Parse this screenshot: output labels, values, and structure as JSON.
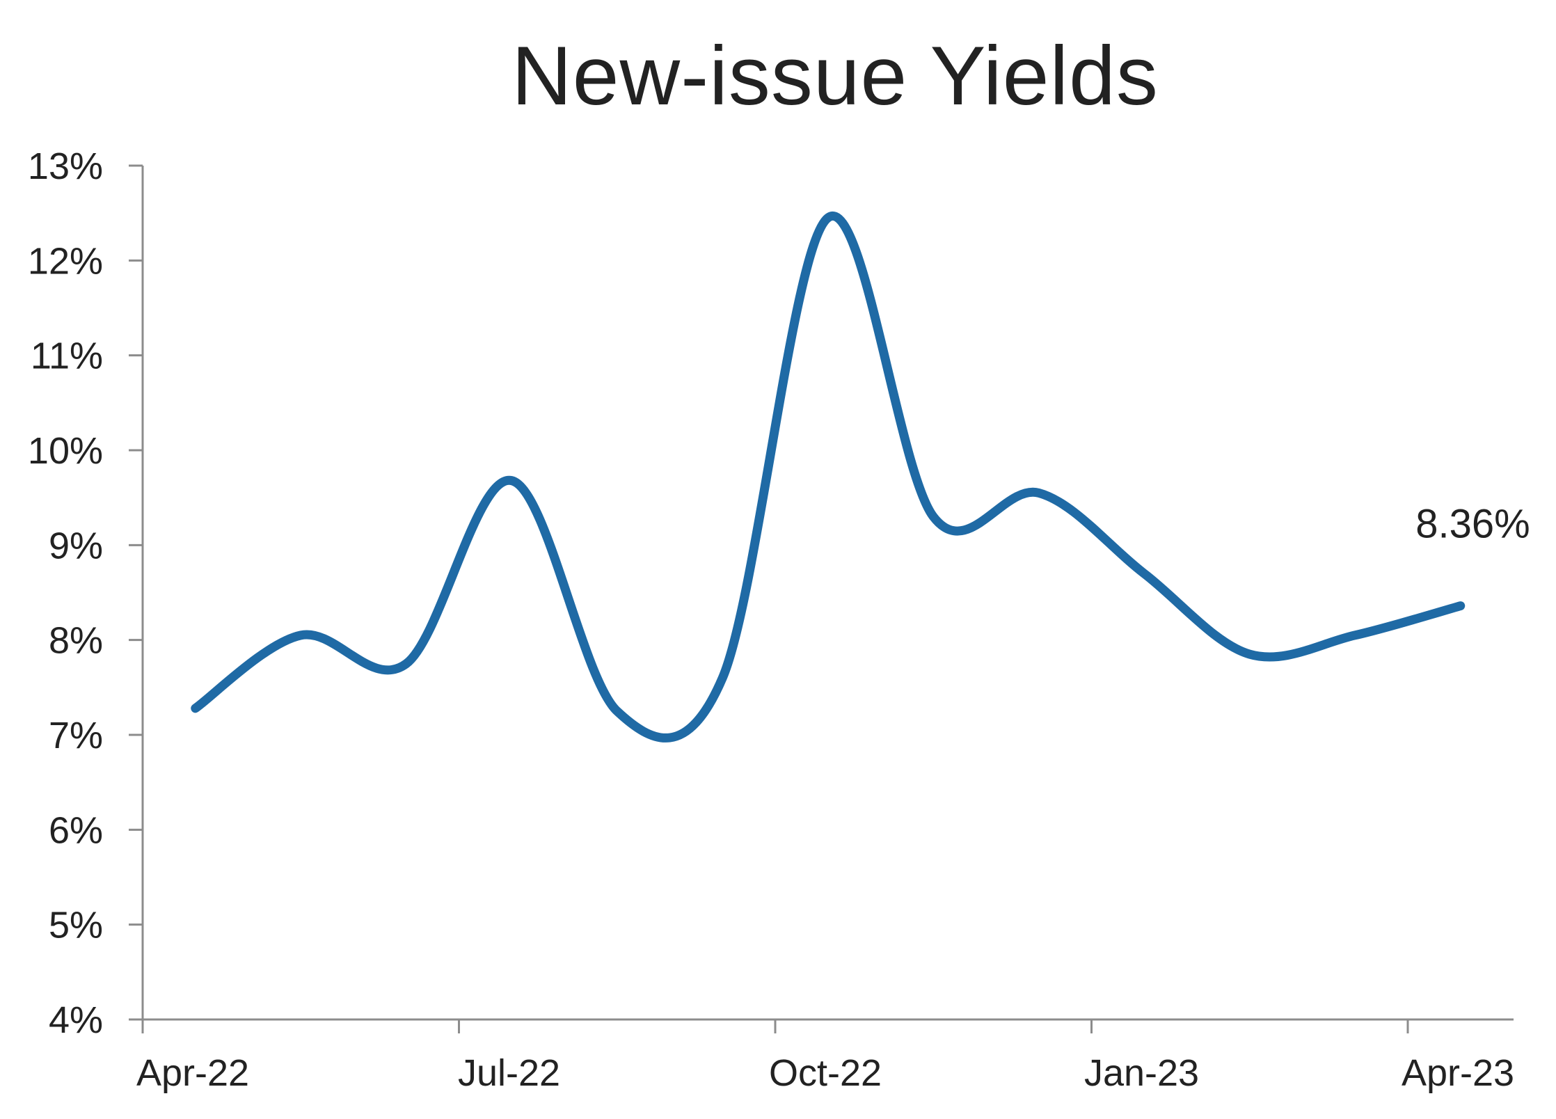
{
  "chart_data": {
    "type": "line",
    "title": "New-issue Yields",
    "xlabel": "",
    "ylabel": "",
    "x_tick_labels": [
      "Apr-22",
      "Jul-22",
      "Oct-22",
      "Jan-23",
      "Apr-23"
    ],
    "y_tick_labels": [
      "4%",
      "5%",
      "6%",
      "7%",
      "8%",
      "9%",
      "10%",
      "11%",
      "12%",
      "13%"
    ],
    "ylim": [
      4,
      13
    ],
    "grid": false,
    "legend": "none",
    "line_color": "#1f6aa5",
    "series": [
      {
        "x": [
          "2022-04",
          "2022-05",
          "2022-06",
          "2022-07",
          "2022-08",
          "2022-09",
          "2022-10",
          "2022-11",
          "2022-12",
          "2023-01",
          "2023-02",
          "2023-03",
          "2023-04"
        ],
        "values": [
          7.28,
          8.05,
          7.75,
          9.68,
          7.25,
          7.6,
          12.45,
          9.3,
          9.55,
          8.7,
          7.85,
          8.05,
          8.36
        ]
      }
    ],
    "annotation": {
      "text": "8.36%",
      "x": "2023-04",
      "y": 8.36
    }
  }
}
